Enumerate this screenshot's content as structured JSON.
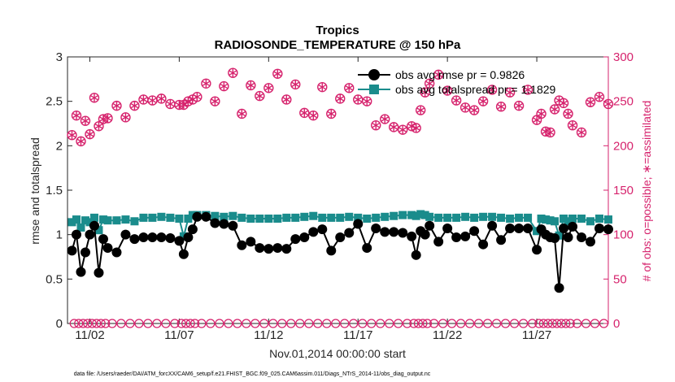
{
  "chart_data": {
    "type": "line",
    "title": "Tropics",
    "subtitle": "RADIOSONDE_TEMPERATURE @ 150 hPa",
    "xlabel": "Nov.01,2014 00:00:00 start",
    "ylabel_left": "rmse and totalspread",
    "ylabel_right": "# of obs: o=possible; ∗=assimilated",
    "footnote": "data file: /Users/raeder/DAI/ATM_forcXX/CAM6_setup/f.e21.FHIST_BGC.f09_025.CAM6assim.011/Diags_NTrS_2014-11/obs_diag_output.nc",
    "xlim": [
      0.75,
      31.0
    ],
    "ylim_left": [
      0,
      3
    ],
    "ylim_right": [
      0,
      300
    ],
    "left_ticks": [
      "0",
      "0.5",
      "1",
      "1.5",
      "2",
      "2.5",
      "3"
    ],
    "right_ticks": [
      "0",
      "50",
      "100",
      "150",
      "200",
      "250",
      "300"
    ],
    "x_ticks": [
      {
        "x": 2,
        "label": "11/02"
      },
      {
        "x": 7,
        "label": "11/07"
      },
      {
        "x": 12,
        "label": "11/12"
      },
      {
        "x": 17,
        "label": "11/17"
      },
      {
        "x": 22,
        "label": "11/22"
      },
      {
        "x": 27,
        "label": "11/27"
      }
    ],
    "legend": {
      "position": "top-right",
      "entries": [
        "obs avg rmse pr = 0.9826",
        "obs avg totalspread pr = 1.1829"
      ]
    },
    "colors": {
      "rmse": "#000000",
      "spread": "#1a8c8c",
      "obs": "#d6236d",
      "axis": "#262626"
    },
    "x": [
      1,
      1.25,
      1.5,
      1.75,
      2,
      2.25,
      2.5,
      2.75,
      3,
      3.5,
      4,
      4.5,
      5,
      5.5,
      6,
      6.5,
      7,
      7.25,
      7.5,
      7.75,
      8,
      8.5,
      9,
      9.5,
      10,
      10.5,
      11,
      11.5,
      12,
      12.5,
      13,
      13.5,
      14,
      14.5,
      15,
      15.5,
      16,
      16.5,
      17,
      17.5,
      18,
      18.5,
      19,
      19.5,
      20,
      20.25,
      20.5,
      20.75,
      21,
      21.5,
      22,
      22.5,
      23,
      23.5,
      24,
      24.5,
      25,
      25.5,
      26,
      26.5,
      27,
      27.25,
      27.5,
      27.75,
      28,
      28.25,
      28.5,
      28.75,
      29,
      29.5,
      30,
      30.5,
      31
    ],
    "series": [
      {
        "name": "rmse",
        "values": [
          0.82,
          1.0,
          0.58,
          0.8,
          1.0,
          1.1,
          0.57,
          0.95,
          0.85,
          0.8,
          1.0,
          0.95,
          0.97,
          0.97,
          0.97,
          0.96,
          0.93,
          0.78,
          0.97,
          1.06,
          1.2,
          1.2,
          1.13,
          1.12,
          1.1,
          0.88,
          0.92,
          0.85,
          0.84,
          0.85,
          0.84,
          0.95,
          0.97,
          1.03,
          1.06,
          0.82,
          0.97,
          1.02,
          1.12,
          0.85,
          1.07,
          1.03,
          1.03,
          1.02,
          0.98,
          0.77,
          1.04,
          1.0,
          1.1,
          0.92,
          1.07,
          0.97,
          0.98,
          1.04,
          0.89,
          1.1,
          0.94,
          1.07,
          1.07,
          1.07,
          0.83,
          1.06,
          1.0,
          0.97,
          0.96,
          0.4,
          1.07,
          0.97,
          1.09,
          0.97,
          0.92,
          1.07,
          1.06
        ]
      },
      {
        "name": "totalspread",
        "values": [
          1.14,
          1.17,
          1.08,
          1.16,
          1.14,
          1.19,
          1.05,
          1.17,
          1.16,
          1.16,
          1.17,
          1.15,
          1.19,
          1.19,
          1.2,
          1.19,
          1.18,
          0.98,
          1.18,
          1.22,
          1.22,
          1.22,
          1.21,
          1.2,
          1.21,
          1.19,
          1.18,
          1.18,
          1.18,
          1.18,
          1.19,
          1.19,
          1.2,
          1.21,
          1.19,
          1.19,
          1.19,
          1.2,
          1.19,
          1.18,
          1.19,
          1.2,
          1.21,
          1.22,
          1.22,
          1.21,
          1.23,
          1.22,
          1.2,
          1.19,
          1.19,
          1.19,
          1.2,
          1.19,
          1.2,
          1.2,
          1.19,
          1.18,
          1.19,
          1.19,
          1.04,
          1.18,
          1.17,
          1.16,
          1.15,
          0.99,
          1.18,
          1.15,
          1.18,
          1.18,
          1.15,
          1.18,
          1.17
        ]
      },
      {
        "name": "obs_possible",
        "values": [
          212,
          234,
          205,
          228,
          213,
          254,
          222,
          230,
          231,
          245,
          232,
          245,
          252,
          251,
          253,
          247,
          246,
          246,
          250,
          252,
          255,
          270,
          250,
          267,
          282,
          236,
          268,
          256,
          265,
          281,
          252,
          269,
          237,
          234,
          266,
          236,
          253,
          265,
          252,
          250,
          223,
          230,
          221,
          218,
          222,
          220,
          240,
          260,
          270,
          280,
          262,
          251,
          243,
          240,
          250,
          263,
          244,
          260,
          245,
          263,
          229,
          236,
          216,
          215,
          241,
          251,
          248,
          236,
          223,
          215,
          249,
          255,
          247
        ]
      },
      {
        "name": "obs_assimilated",
        "values": [
          212,
          234,
          205,
          228,
          213,
          254,
          222,
          230,
          231,
          245,
          232,
          245,
          252,
          251,
          253,
          247,
          246,
          246,
          250,
          252,
          255,
          270,
          250,
          267,
          282,
          236,
          268,
          256,
          265,
          281,
          252,
          269,
          237,
          234,
          266,
          236,
          253,
          265,
          252,
          250,
          223,
          230,
          221,
          218,
          222,
          220,
          240,
          260,
          270,
          280,
          262,
          251,
          243,
          240,
          250,
          263,
          244,
          260,
          245,
          263,
          229,
          236,
          216,
          215,
          241,
          251,
          248,
          236,
          223,
          215,
          249,
          255,
          247
        ]
      }
    ]
  }
}
